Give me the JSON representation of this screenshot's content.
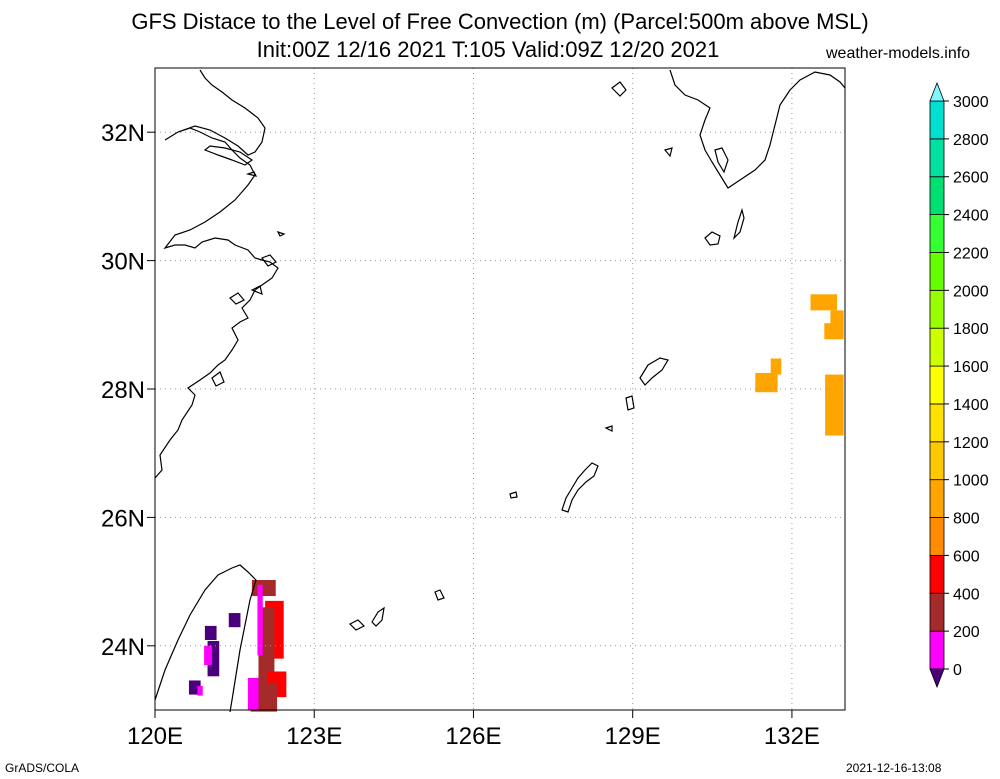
{
  "title": {
    "line1": "GFS Distace to the Level of Free Convection (m) (Parcel:500m above MSL)",
    "line2": "Init:00Z 12/16 2021 T:105 Valid:09Z 12/20 2021"
  },
  "site": "weather-models.info",
  "footer": {
    "left": "GrADS/COLA",
    "right": "2021-12-16-13:08"
  },
  "map": {
    "lon_range": [
      120,
      133
    ],
    "lat_range": [
      23,
      33
    ],
    "lon_ticks": [
      "120E",
      "123E",
      "126E",
      "129E",
      "132E"
    ],
    "lat_ticks": [
      "24N",
      "26N",
      "28N",
      "30N",
      "32N"
    ],
    "grid_lines": "dotted",
    "coast_color": "#000000"
  },
  "colorbar": {
    "labels": [
      "0",
      "200",
      "400",
      "600",
      "800",
      "1000",
      "1200",
      "1400",
      "1600",
      "1800",
      "2000",
      "2200",
      "2400",
      "2600",
      "2800",
      "3000"
    ],
    "colors": [
      "#4a007a",
      "#ff00ff",
      "#a52a2a",
      "#ff0000",
      "#ff8c00",
      "#ffa500",
      "#ffc800",
      "#ffe000",
      "#ffff00",
      "#ccff00",
      "#99ff00",
      "#66ff00",
      "#33ff33",
      "#00e070",
      "#00e0a0",
      "#00e0d0",
      "#00ffff"
    ],
    "low_color": "#4a007a",
    "high_color": "#7ff8ff"
  },
  "field_cells": [
    {
      "lon": 132.6,
      "lat": 29.35,
      "dlon": 0.5,
      "dlat": 0.25,
      "color": "#ffa500"
    },
    {
      "lon": 132.85,
      "lat": 29.0,
      "dlon": 0.25,
      "dlat": 0.45,
      "color": "#ffa500"
    },
    {
      "lon": 132.72,
      "lat": 28.9,
      "dlon": 0.22,
      "dlat": 0.25,
      "color": "#ffa500"
    },
    {
      "lon": 132.8,
      "lat": 27.75,
      "dlon": 0.35,
      "dlat": 0.95,
      "color": "#ffa500"
    },
    {
      "lon": 131.52,
      "lat": 28.1,
      "dlon": 0.42,
      "dlat": 0.3,
      "color": "#ffa500"
    },
    {
      "lon": 131.7,
      "lat": 28.35,
      "dlon": 0.2,
      "dlat": 0.25,
      "color": "#ffa500"
    },
    {
      "lon": 122.05,
      "lat": 24.9,
      "dlon": 0.45,
      "dlat": 0.25,
      "color": "#a52a2a"
    },
    {
      "lon": 122.25,
      "lat": 24.25,
      "dlon": 0.35,
      "dlat": 0.9,
      "color": "#ff0000"
    },
    {
      "lon": 122.1,
      "lat": 24.0,
      "dlon": 0.3,
      "dlat": 1.2,
      "color": "#a52a2a"
    },
    {
      "lon": 121.98,
      "lat": 24.4,
      "dlon": 0.1,
      "dlat": 1.1,
      "color": "#ff00ff"
    },
    {
      "lon": 122.3,
      "lat": 23.4,
      "dlon": 0.35,
      "dlat": 0.4,
      "color": "#ff0000"
    },
    {
      "lon": 122.05,
      "lat": 23.2,
      "dlon": 0.5,
      "dlat": 0.45,
      "color": "#a52a2a"
    },
    {
      "lon": 121.85,
      "lat": 23.25,
      "dlon": 0.2,
      "dlat": 0.5,
      "color": "#ff00ff"
    },
    {
      "lon": 121.5,
      "lat": 24.4,
      "dlon": 0.22,
      "dlat": 0.22,
      "color": "#4a007a"
    },
    {
      "lon": 121.05,
      "lat": 24.2,
      "dlon": 0.22,
      "dlat": 0.22,
      "color": "#4a007a"
    },
    {
      "lon": 121.1,
      "lat": 23.8,
      "dlon": 0.22,
      "dlat": 0.55,
      "color": "#4a007a"
    },
    {
      "lon": 121.0,
      "lat": 23.85,
      "dlon": 0.15,
      "dlat": 0.3,
      "color": "#ff00ff"
    },
    {
      "lon": 120.75,
      "lat": 23.35,
      "dlon": 0.22,
      "dlat": 0.22,
      "color": "#4a007a"
    },
    {
      "lon": 120.85,
      "lat": 23.3,
      "dlon": 0.1,
      "dlat": 0.15,
      "color": "#ff00ff"
    }
  ]
}
